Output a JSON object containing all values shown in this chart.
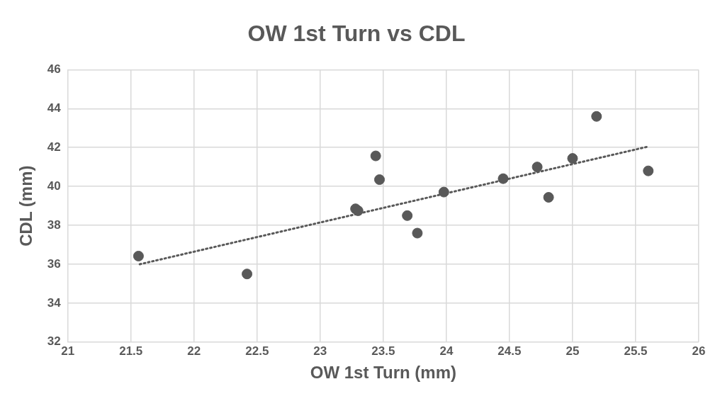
{
  "chart_data": {
    "type": "scatter",
    "title": "OW 1st Turn vs CDL",
    "xlabel": "OW 1st Turn (mm)",
    "ylabel": "CDL (mm)",
    "xlim": [
      21,
      26
    ],
    "xticks": [
      21,
      21.5,
      22,
      22.5,
      23,
      23.5,
      24,
      24.5,
      25,
      25.5,
      26
    ],
    "ylim": [
      32,
      46
    ],
    "yticks": [
      32,
      34,
      36,
      38,
      40,
      42,
      44,
      46
    ],
    "grid": true,
    "legend": false,
    "marker": "circle",
    "series": [
      {
        "color": "#595959",
        "x": [
          21.56,
          22.42,
          23.28,
          23.3,
          23.44,
          23.47,
          23.69,
          23.77,
          23.98,
          24.45,
          24.72,
          24.81,
          25.0,
          25.19,
          25.6
        ],
        "values": [
          36.42,
          35.5,
          38.85,
          38.75,
          41.57,
          40.35,
          38.5,
          37.6,
          39.71,
          40.4,
          41.0,
          39.44,
          41.44,
          43.6,
          40.8
        ]
      },
      {
        "type": "line",
        "color": "#595959",
        "line_style": "dotted",
        "marker": "none",
        "x": [
          21.57,
          25.6
        ],
        "values": [
          36.0,
          42.05
        ]
      }
    ]
  }
}
